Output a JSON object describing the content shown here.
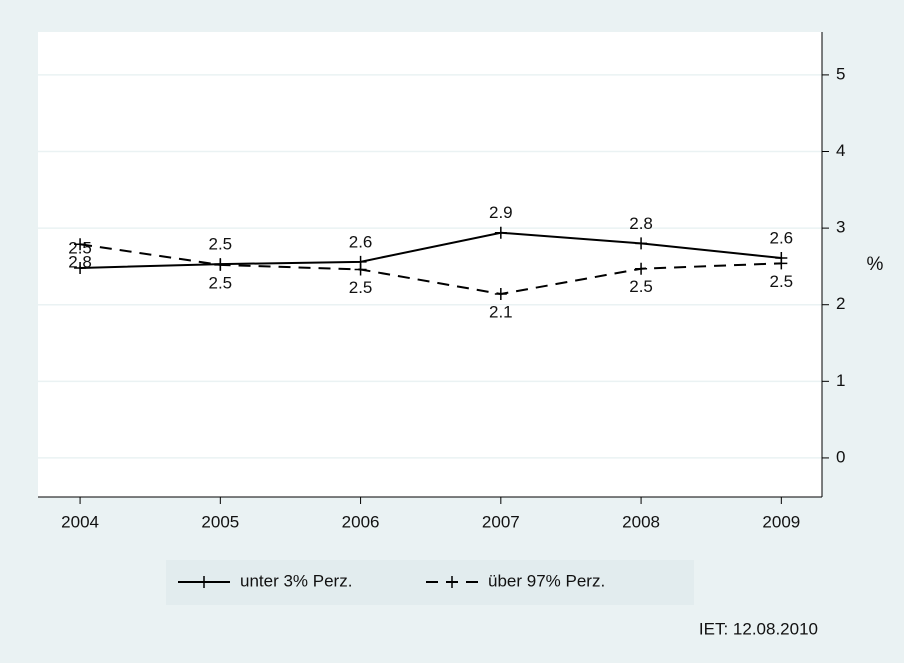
{
  "chart_data": {
    "type": "line",
    "x": [
      2004,
      2005,
      2006,
      2007,
      2008,
      2009
    ],
    "xlim": [
      2003.7,
      2009.29
    ],
    "xticks": [
      2004,
      2005,
      2006,
      2007,
      2008,
      2009
    ],
    "ylim": [
      -0.51,
      5.56
    ],
    "yticks": [
      0,
      1,
      2,
      3,
      4,
      5
    ],
    "y_label": "%",
    "grid": true,
    "y_axis_side": "right",
    "series": [
      {
        "name": "unter 3% Perz.",
        "color": "#000000",
        "dash": "solid",
        "values": [
          2.48,
          2.53,
          2.56,
          2.94,
          2.8,
          2.61
        ],
        "value_labels": [
          "2.5",
          "2.5",
          "2.6",
          "2.9",
          "2.8",
          "2.6"
        ],
        "label_position": "above"
      },
      {
        "name": "über 97% Perz.",
        "color": "#000000",
        "dash": "dashed",
        "values": [
          2.79,
          2.52,
          2.46,
          2.14,
          2.47,
          2.54
        ],
        "value_labels": [
          "2.8",
          "2.5",
          "2.5",
          "2.1",
          "2.5",
          "2.5"
        ],
        "label_position": "below"
      }
    ],
    "note": "IET: 12.08.2010"
  }
}
